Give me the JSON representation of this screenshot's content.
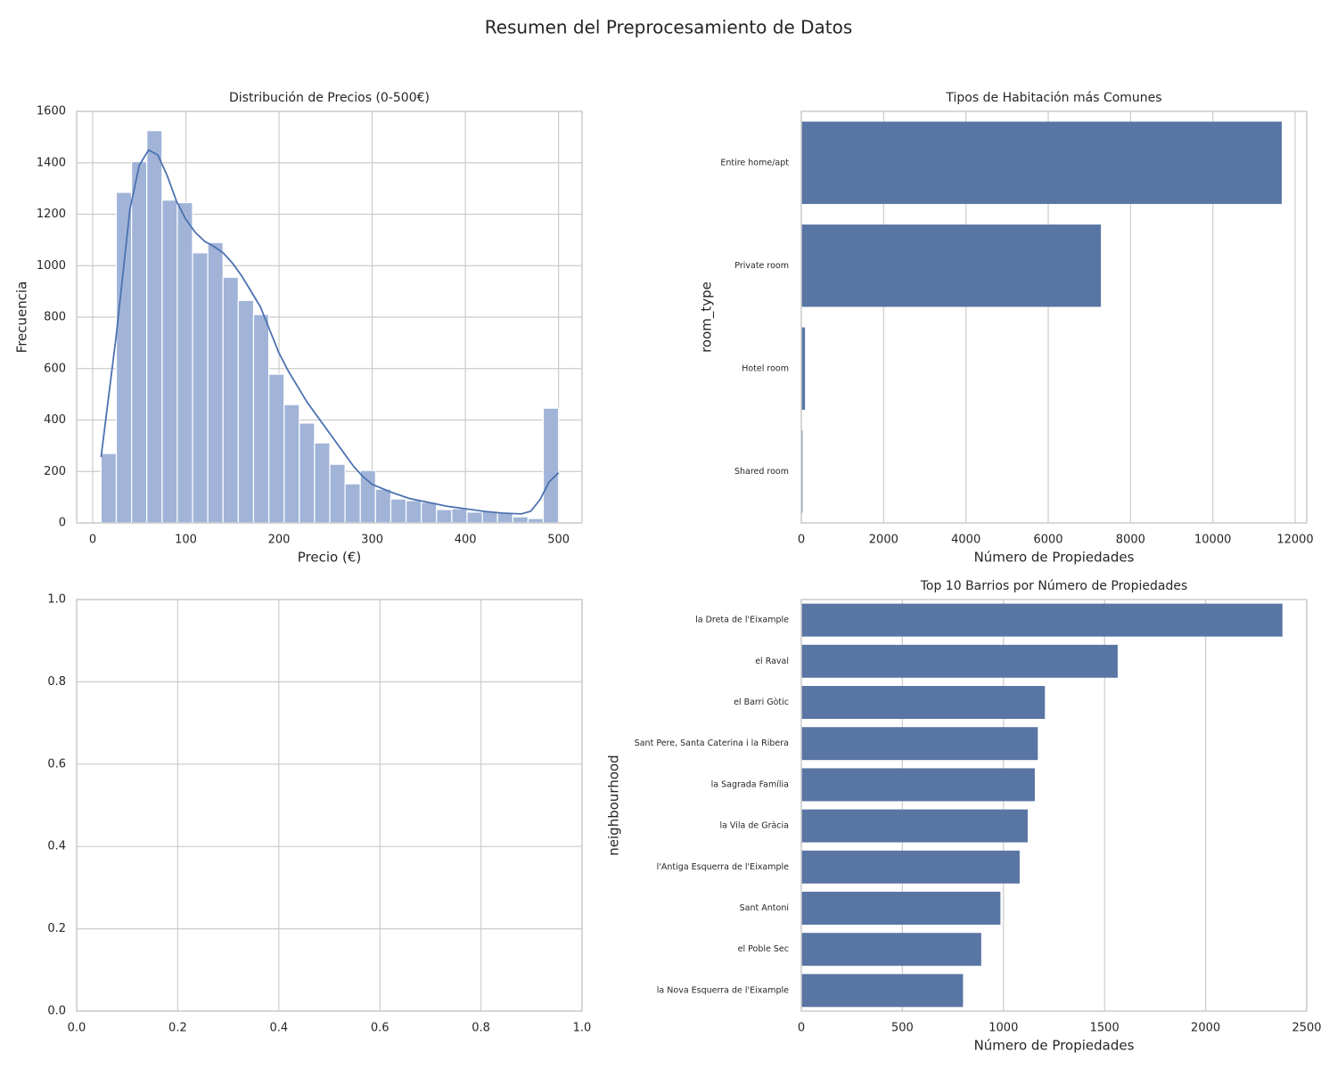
{
  "title": "Resumen del Preprocesamiento de Datos",
  "chart_data": [
    {
      "type": "histogram",
      "title": "Distribución de Precios (0-500€)",
      "x_label": "Precio (€)",
      "y_label": "Frecuencia",
      "bins": [
        9,
        25.37,
        41.73,
        58.1,
        74.47,
        90.83,
        107.2,
        123.57,
        139.93,
        156.3,
        172.67,
        189.03,
        205.4,
        221.77,
        238.13,
        254.5,
        270.87,
        287.23,
        303.6,
        319.97,
        336.33,
        352.7,
        369.07,
        385.43,
        401.8,
        418.17,
        434.53,
        450.9,
        467.27,
        483.63,
        500
      ],
      "values": [
        270,
        1285,
        1405,
        1525,
        1255,
        1245,
        1050,
        1090,
        955,
        865,
        810,
        578,
        460,
        388,
        311,
        228,
        152,
        204,
        131,
        93,
        87,
        80,
        52,
        55,
        42,
        45,
        38,
        24,
        17,
        446
      ],
      "color": "#a1b4d8",
      "kde": {
        "color": "#4c72b0",
        "x": [
          9,
          25,
          40,
          50,
          60,
          70,
          80,
          90,
          100,
          110,
          120,
          130,
          140,
          150,
          160,
          170,
          180,
          190,
          200,
          210,
          220,
          230,
          240,
          250,
          260,
          270,
          280,
          290,
          300,
          320,
          340,
          360,
          380,
          400,
          420,
          440,
          460,
          470,
          480,
          490,
          500
        ],
        "values": [
          256,
          720,
          1220,
          1390,
          1450,
          1430,
          1350,
          1250,
          1180,
          1130,
          1095,
          1075,
          1050,
          1010,
          960,
          900,
          840,
          750,
          660,
          590,
          530,
          470,
          420,
          370,
          320,
          270,
          220,
          180,
          150,
          120,
          95,
          80,
          65,
          55,
          45,
          38,
          35,
          45,
          90,
          160,
          195
        ]
      },
      "xlim": [
        -17.2,
        525.2
      ],
      "xticks": [
        0,
        100,
        200,
        300,
        400,
        500
      ],
      "ylim": [
        0,
        1600
      ],
      "yticks": [
        0,
        200,
        400,
        600,
        800,
        1000,
        1200,
        1400,
        1600
      ],
      "grid": true
    },
    {
      "type": "barh",
      "title": "Tipos de Habitación más Comunes",
      "x_label": "Número de Propiedades",
      "y_label": "room_type",
      "categories": [
        "Entire home/apt",
        "Private room",
        "Hotel room",
        "Shared room"
      ],
      "values": [
        11675,
        7280,
        90,
        30
      ],
      "color": "#5975a4",
      "xlim": [
        0,
        12281
      ],
      "xticks": [
        0,
        2000,
        4000,
        6000,
        8000,
        10000,
        12000
      ],
      "grid": true
    },
    {
      "type": "empty",
      "xlim": [
        0,
        1
      ],
      "xticks": [
        {
          "value": 0,
          "label": "0.0"
        },
        {
          "value": 0.2,
          "label": "0.2"
        },
        {
          "value": 0.4,
          "label": "0.4"
        },
        {
          "value": 0.6,
          "label": "0.6"
        },
        {
          "value": 0.8,
          "label": "0.8"
        },
        {
          "value": 1,
          "label": "1.0"
        }
      ],
      "ylim": [
        0,
        1
      ],
      "yticks": [
        {
          "value": 0,
          "label": "0.0"
        },
        {
          "value": 0.2,
          "label": "0.2"
        },
        {
          "value": 0.4,
          "label": "0.4"
        },
        {
          "value": 0.6,
          "label": "0.6"
        },
        {
          "value": 0.8,
          "label": "0.8"
        },
        {
          "value": 1,
          "label": "1.0"
        }
      ],
      "grid": true
    },
    {
      "type": "barh",
      "title": "Top 10 Barrios por Número de Propiedades",
      "x_label": "Número de Propiedades",
      "y_label": "neighbourhood",
      "categories": [
        "la Dreta de l'Eixample",
        "el Raval",
        "el Barri Gòtic",
        "Sant Pere, Santa Caterina i la Ribera",
        "la Sagrada Família",
        "la Vila de Gràcia",
        "l'Antiga Esquerra de l'Eixample",
        "Sant Antoni",
        "el Poble Sec",
        "la Nova Esquerra de l'Eixample"
      ],
      "values": [
        2380,
        1565,
        1205,
        1170,
        1155,
        1120,
        1080,
        985,
        890,
        800
      ],
      "color": "#5975a4",
      "xlim": [
        0,
        2500
      ],
      "xticks": [
        0,
        500,
        1000,
        1500,
        2000,
        2500
      ],
      "grid": true
    }
  ]
}
